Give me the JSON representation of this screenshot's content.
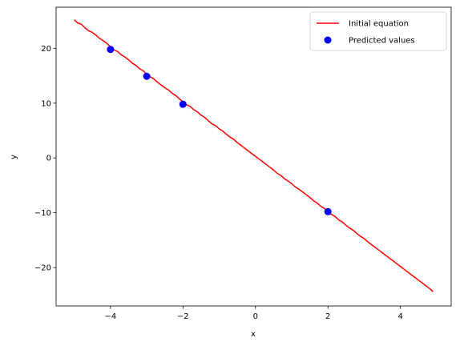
{
  "chart_data": {
    "type": "line",
    "title": "",
    "xlabel": "x",
    "ylabel": "y",
    "xlim": [
      -5.5,
      5.4
    ],
    "ylim": [
      -27,
      27.5
    ],
    "xticks": [
      -4,
      -2,
      0,
      2,
      4
    ],
    "yticks": [
      -20,
      -10,
      0,
      10,
      20
    ],
    "xtick_labels": [
      "−4",
      "−2",
      "0",
      "2",
      "4"
    ],
    "ytick_labels": [
      "−20",
      "−10",
      "0",
      "10",
      "20"
    ],
    "grid": false,
    "legend_position": "top-right",
    "series": [
      {
        "name": "Initial equation",
        "kind": "line",
        "color": "#ff0000",
        "x": [
          -5.0,
          -4.9,
          -4.8,
          -4.7,
          -4.6,
          -4.5,
          -4.4,
          -4.3,
          -4.2,
          -4.1,
          -4.0,
          -3.9,
          -3.8,
          -3.7,
          -3.6,
          -3.5,
          -3.4,
          -3.3,
          -3.2,
          -3.1,
          -3.0,
          -2.9,
          -2.8,
          -2.7,
          -2.6,
          -2.5,
          -2.4,
          -2.3,
          -2.2,
          -2.1,
          -2.0,
          -1.9,
          -1.8,
          -1.7,
          -1.6,
          -1.5,
          -1.4,
          -1.3,
          -1.2,
          -1.1,
          -1.0,
          -0.9,
          -0.8,
          -0.7,
          -0.6,
          -0.5,
          -0.4,
          -0.3,
          -0.2,
          -0.1,
          0.0,
          0.1,
          0.2,
          0.3,
          0.4,
          0.5,
          0.6,
          0.7,
          0.8,
          0.9,
          1.0,
          1.1,
          1.2,
          1.3,
          1.4,
          1.5,
          1.6,
          1.7,
          1.8,
          1.9,
          2.0,
          2.1,
          2.2,
          2.3,
          2.4,
          2.5,
          2.6,
          2.7,
          2.8,
          2.9,
          3.0,
          3.1,
          3.2,
          3.3,
          3.4,
          3.5,
          3.6,
          3.7,
          3.8,
          3.9,
          4.0,
          4.1,
          4.2,
          4.3,
          4.4,
          4.5,
          4.6,
          4.7,
          4.8,
          4.9
        ],
        "y": [
          25.2,
          24.6,
          24.4,
          23.7,
          23.2,
          22.9,
          22.4,
          21.8,
          21.4,
          20.9,
          20.3,
          19.7,
          19.4,
          18.8,
          18.4,
          17.9,
          17.3,
          16.9,
          16.3,
          15.9,
          15.3,
          14.8,
          14.4,
          13.8,
          13.3,
          12.8,
          12.4,
          11.8,
          11.4,
          10.8,
          10.2,
          9.7,
          9.4,
          8.8,
          8.4,
          7.8,
          7.4,
          6.8,
          6.2,
          5.9,
          5.3,
          4.9,
          4.3,
          3.8,
          3.4,
          2.8,
          2.3,
          1.8,
          1.3,
          0.8,
          0.3,
          -0.2,
          -0.7,
          -1.2,
          -1.7,
          -2.2,
          -2.8,
          -3.2,
          -3.8,
          -4.2,
          -4.7,
          -5.3,
          -5.7,
          -6.2,
          -6.7,
          -7.2,
          -7.8,
          -8.2,
          -8.8,
          -9.2,
          -9.8,
          -10.3,
          -10.7,
          -11.3,
          -11.7,
          -12.3,
          -12.8,
          -13.2,
          -13.8,
          -14.3,
          -14.7,
          -15.3,
          -15.8,
          -16.3,
          -16.8,
          -17.3,
          -17.8,
          -18.3,
          -18.8,
          -19.3,
          -19.8,
          -20.3,
          -20.8,
          -21.3,
          -21.8,
          -22.3,
          -22.8,
          -23.3,
          -23.8,
          -24.4
        ]
      },
      {
        "name": "Predicted values",
        "kind": "scatter",
        "color": "#0000ff",
        "x": [
          -4,
          -3,
          -2,
          2
        ],
        "y": [
          19.8,
          14.9,
          9.8,
          -9.8
        ]
      }
    ]
  }
}
